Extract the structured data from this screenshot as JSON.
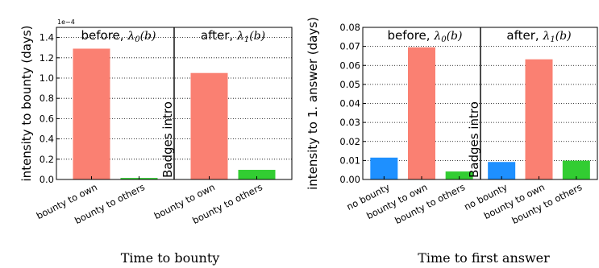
{
  "chart_data": [
    {
      "type": "bar",
      "caption": "Time to bounty",
      "ylabel": "intensity to bounty (days)",
      "y_multiplier": "1e−4",
      "ylim": [
        0,
        1.5
      ],
      "yticks": [
        "0.0",
        "0.2",
        "0.4",
        "0.6",
        "0.8",
        "1.0",
        "1.2",
        "1.4"
      ],
      "grid": "horizontal dotted",
      "divider_label": "Badges intro",
      "panels": [
        {
          "label": "before, ",
          "lambda": "λ",
          "lambda_sub": "0",
          "lambda_arg": "(b)",
          "categories": [
            "bounty to own",
            "bounty to others"
          ],
          "values": [
            1.29,
            0.015
          ],
          "colors": [
            "#fa8072",
            "#32cd32"
          ]
        },
        {
          "label": "after, ",
          "lambda": "λ",
          "lambda_sub": "1",
          "lambda_arg": "(b)",
          "categories": [
            "bounty to own",
            "bounty to others"
          ],
          "values": [
            1.05,
            0.095
          ],
          "colors": [
            "#fa8072",
            "#32cd32"
          ]
        }
      ]
    },
    {
      "type": "bar",
      "caption": "Time to first answer",
      "ylabel": "intensity to 1. answer (days)",
      "ylim": [
        0,
        0.08
      ],
      "yticks": [
        "0.00",
        "0.01",
        "0.02",
        "0.03",
        "0.04",
        "0.05",
        "0.06",
        "0.07",
        "0.08"
      ],
      "grid": "horizontal dotted",
      "divider_label": "Badges intro",
      "panels": [
        {
          "label": "before, ",
          "lambda": "λ",
          "lambda_sub": "0",
          "lambda_arg": "(b)",
          "categories": [
            "no bounty",
            "bounty to own",
            "bounty to others"
          ],
          "values": [
            0.0115,
            0.0695,
            0.0042
          ],
          "colors": [
            "#1e90ff",
            "#fa8072",
            "#32cd32"
          ]
        },
        {
          "label": "after, ",
          "lambda": "λ",
          "lambda_sub": "1",
          "lambda_arg": "(b)",
          "categories": [
            "no bounty",
            "bounty to own",
            "bounty to others"
          ],
          "values": [
            0.0092,
            0.0632,
            0.0099
          ],
          "colors": [
            "#1e90ff",
            "#fa8072",
            "#32cd32"
          ]
        }
      ]
    }
  ]
}
